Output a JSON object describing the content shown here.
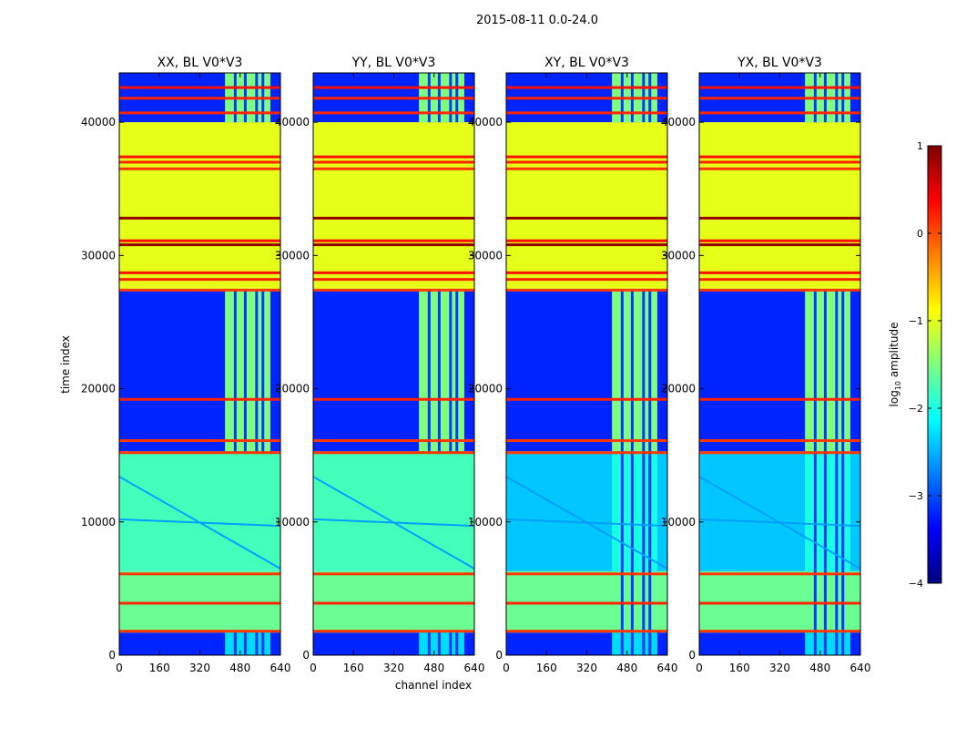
{
  "chart_data": {
    "type": "heatmap",
    "title": "2015-08-11 0.0-24.0",
    "xlabel": "channel index",
    "ylabel": "time index",
    "xlim": [
      0,
      640
    ],
    "ylim": [
      0,
      43700
    ],
    "xticks": [
      0,
      160,
      320,
      480,
      640
    ],
    "yticks": [
      0,
      10000,
      20000,
      30000,
      40000
    ],
    "colorbar": {
      "label": "log10 amplitude",
      "label_main": "log",
      "label_sub": "10",
      "label_tail": " amplitude",
      "range": [
        -4,
        1
      ],
      "ticks": [
        1,
        0,
        -1,
        -2,
        -3,
        -4
      ],
      "colormap": "jet",
      "stops": [
        "#00007f",
        "#0000ff",
        "#007fff",
        "#00ffff",
        "#7fff7f",
        "#ffff00",
        "#ff7f00",
        "#ff0000",
        "#7f0000"
      ]
    },
    "panels": [
      {
        "title": "XX, BL V0*V3",
        "pol": "XX"
      },
      {
        "title": "YY, BL V0*V3",
        "pol": "YY"
      },
      {
        "title": "XY, BL V0*V3",
        "pol": "XY"
      },
      {
        "title": "YX, BL V0*V3",
        "pol": "YX"
      }
    ],
    "time_segments": [
      {
        "t0": 0,
        "t1": 1700,
        "level_left": -3.2,
        "level_band": -2.3,
        "band_pols": [
          "XX",
          "YY",
          "XY",
          "YX"
        ]
      },
      {
        "t0": 1700,
        "t1": 6300,
        "level_left": -1.6,
        "level_band": -1.6,
        "band_pols": []
      },
      {
        "t0": 6300,
        "t1": 15300,
        "level_left": -1.8,
        "level_band": -2.0,
        "band_pols": []
      },
      {
        "t0": 15300,
        "t1": 27500,
        "level_left": -3.2,
        "level_band": -1.5,
        "band_pols": [
          "XX",
          "YY",
          "XY",
          "YX"
        ]
      },
      {
        "t0": 27500,
        "t1": 40000,
        "level_left": -1.0,
        "level_band": -1.0,
        "band_pols": []
      },
      {
        "t0": 40000,
        "t1": 43700,
        "level_left": -3.2,
        "level_band": -1.5,
        "band_pols": [
          "XX",
          "YY",
          "XY",
          "YX"
        ]
      }
    ],
    "cross_pol_level_low": -2.4,
    "flag_lines": [
      {
        "t": 1800,
        "level": 0.1
      },
      {
        "t": 3900,
        "level": 0.2
      },
      {
        "t": 6100,
        "level": 0.1
      },
      {
        "t": 15200,
        "level": 0.1
      },
      {
        "t": 16100,
        "level": 0.1
      },
      {
        "t": 19200,
        "level": 0.2
      },
      {
        "t": 27400,
        "level": 0.1
      },
      {
        "t": 28200,
        "level": 0.2
      },
      {
        "t": 28700,
        "level": 0.3
      },
      {
        "t": 30800,
        "level": 0.9
      },
      {
        "t": 31100,
        "level": 0.3
      },
      {
        "t": 32800,
        "level": 0.9
      },
      {
        "t": 36500,
        "level": 0.1
      },
      {
        "t": 37000,
        "level": 0.2
      },
      {
        "t": 37400,
        "level": 0.3
      },
      {
        "t": 40700,
        "level": 0.2
      },
      {
        "t": 41800,
        "level": 0.2
      },
      {
        "t": 42600,
        "level": 0.3
      }
    ],
    "band": [
      420,
      600
    ]
  }
}
